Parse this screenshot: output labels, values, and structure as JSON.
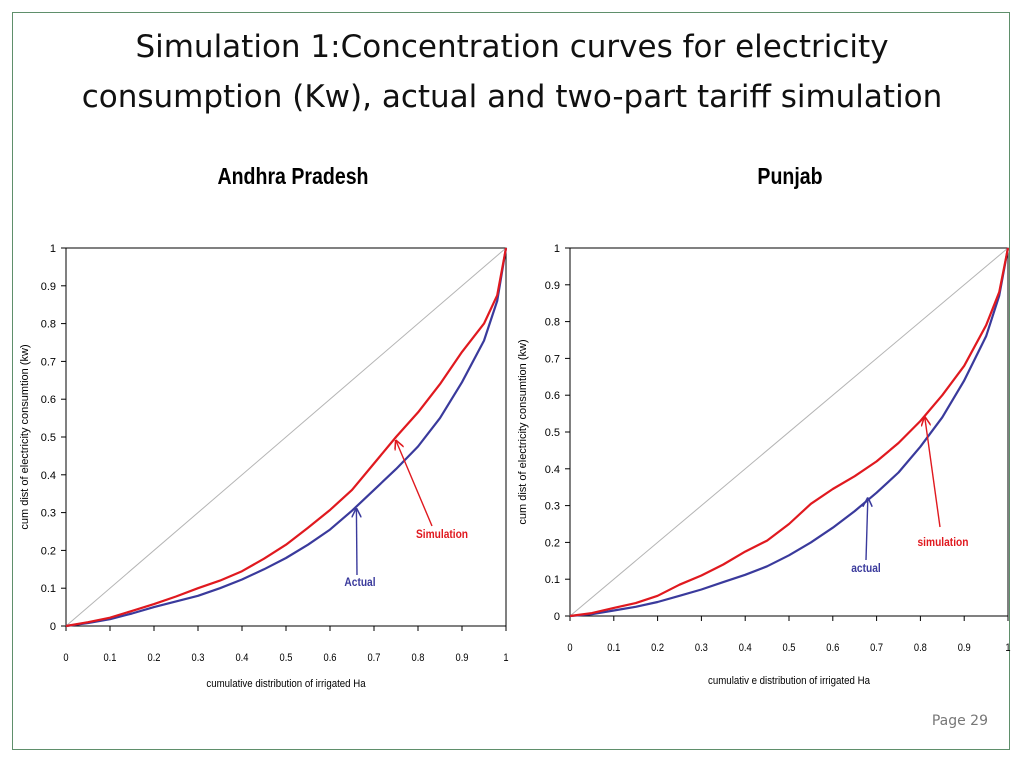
{
  "slide": {
    "title_line1": "Simulation 1:Concentration curves for electricity",
    "title_line2": "consumption (Kw), actual and two-part tariff simulation",
    "page_label": "Page 29"
  },
  "colors": {
    "simulation": "#e0191f",
    "actual": "#3a3a9c",
    "diagonal": "#b4b4b4",
    "frame": "#5f8f6b"
  },
  "chart_data": [
    {
      "type": "line",
      "title": "Andhra Pradesh",
      "xlabel": "cumulative distribution of irrigated Ha",
      "ylabel": "cum dist of electricity consumtion (kw)",
      "xlim": [
        0,
        1
      ],
      "ylim": [
        0,
        1
      ],
      "xticks": [
        "0",
        "0.1",
        "0.2",
        "0.3",
        "0.4",
        "0.5",
        "0.6",
        "0.7",
        "0.8",
        "0.9",
        "1"
      ],
      "yticks": [
        "0",
        "0.1",
        "0.2",
        "0.3",
        "0.4",
        "0.5",
        "0.6",
        "0.7",
        "0.8",
        "0.9",
        "1"
      ],
      "grid": false,
      "series": [
        {
          "name": "Simulation",
          "color": "#e0191f",
          "x": [
            0,
            0.05,
            0.1,
            0.15,
            0.2,
            0.25,
            0.3,
            0.35,
            0.4,
            0.45,
            0.5,
            0.55,
            0.6,
            0.65,
            0.7,
            0.75,
            0.8,
            0.85,
            0.9,
            0.95,
            0.98,
            1
          ],
          "y": [
            0,
            0.01,
            0.022,
            0.04,
            0.058,
            0.078,
            0.1,
            0.12,
            0.145,
            0.178,
            0.215,
            0.26,
            0.307,
            0.36,
            0.43,
            0.5,
            0.565,
            0.64,
            0.725,
            0.8,
            0.875,
            1
          ]
        },
        {
          "name": "Actual",
          "color": "#3a3a9c",
          "x": [
            0,
            0.05,
            0.1,
            0.15,
            0.2,
            0.25,
            0.3,
            0.35,
            0.4,
            0.45,
            0.5,
            0.55,
            0.6,
            0.65,
            0.7,
            0.75,
            0.8,
            0.85,
            0.9,
            0.95,
            0.98,
            1
          ],
          "y": [
            0,
            0.008,
            0.018,
            0.033,
            0.05,
            0.065,
            0.08,
            0.1,
            0.123,
            0.15,
            0.18,
            0.215,
            0.255,
            0.305,
            0.36,
            0.415,
            0.475,
            0.55,
            0.645,
            0.755,
            0.86,
            1
          ]
        },
        {
          "name": "",
          "color": "#b4b4b4",
          "x": [
            0,
            1
          ],
          "y": [
            0,
            1
          ]
        }
      ],
      "annotations": [
        {
          "text": "Simulation",
          "point": [
            0.75,
            0.49
          ]
        },
        {
          "text": "Actual",
          "point": [
            0.66,
            0.31
          ]
        }
      ]
    },
    {
      "type": "line",
      "title": "Punjab",
      "xlabel": "cumulativ e distribution of irrigated Ha",
      "ylabel": "cum dist of electricity consumtion (kw)",
      "xlim": [
        0,
        1
      ],
      "ylim": [
        0,
        1
      ],
      "xticks": [
        "0",
        "0.1",
        "0.2",
        "0.3",
        "0.4",
        "0.5",
        "0.6",
        "0.7",
        "0.8",
        "0.9",
        "1"
      ],
      "yticks": [
        "0",
        "0.1",
        "0.2",
        "0.3",
        "0.4",
        "0.5",
        "0.6",
        "0.7",
        "0.8",
        "0.9",
        "1"
      ],
      "grid": false,
      "series": [
        {
          "name": "simulation",
          "color": "#e0191f",
          "x": [
            0,
            0.05,
            0.1,
            0.15,
            0.2,
            0.25,
            0.3,
            0.35,
            0.4,
            0.45,
            0.5,
            0.55,
            0.6,
            0.65,
            0.7,
            0.75,
            0.8,
            0.85,
            0.9,
            0.95,
            0.98,
            1
          ],
          "y": [
            0,
            0.008,
            0.022,
            0.035,
            0.055,
            0.085,
            0.11,
            0.14,
            0.175,
            0.205,
            0.25,
            0.305,
            0.345,
            0.38,
            0.42,
            0.47,
            0.53,
            0.6,
            0.68,
            0.79,
            0.88,
            1
          ]
        },
        {
          "name": "actual",
          "color": "#3a3a9c",
          "x": [
            0,
            0.05,
            0.1,
            0.15,
            0.2,
            0.25,
            0.3,
            0.35,
            0.4,
            0.45,
            0.5,
            0.55,
            0.6,
            0.65,
            0.7,
            0.75,
            0.8,
            0.85,
            0.9,
            0.95,
            0.98,
            1
          ],
          "y": [
            0,
            0.005,
            0.015,
            0.025,
            0.038,
            0.055,
            0.072,
            0.092,
            0.112,
            0.135,
            0.165,
            0.2,
            0.24,
            0.285,
            0.335,
            0.39,
            0.46,
            0.54,
            0.64,
            0.76,
            0.87,
            1
          ]
        },
        {
          "name": "",
          "color": "#b4b4b4",
          "x": [
            0,
            1
          ],
          "y": [
            0,
            1
          ]
        }
      ],
      "annotations": [
        {
          "text": "simulation",
          "point": [
            0.81,
            0.54
          ]
        },
        {
          "text": "actual",
          "point": [
            0.68,
            0.32
          ]
        }
      ]
    }
  ]
}
